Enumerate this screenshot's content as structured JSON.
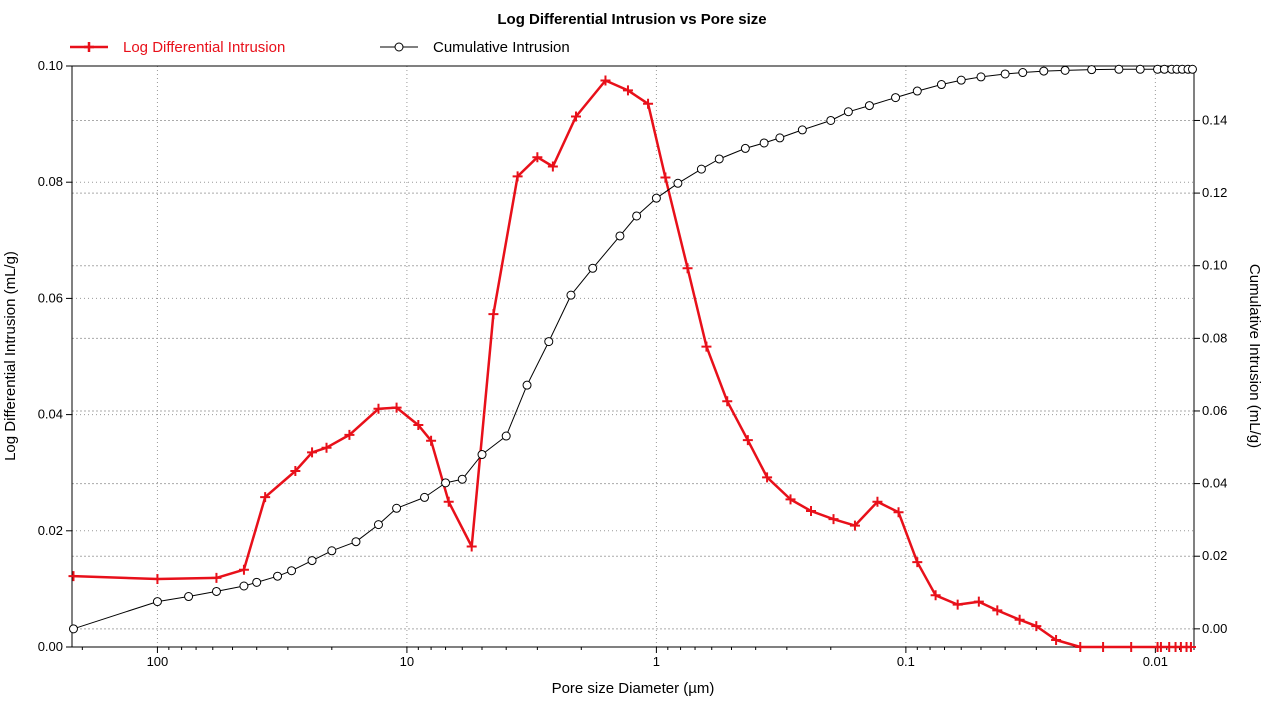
{
  "chart_data": {
    "type": "line",
    "title": "Log Differential Intrusion vs Pore size",
    "xlabel": "Pore size Diameter (µm)",
    "ylabel_left": "Log Differential Intrusion (mL/g)",
    "ylabel_right": "Cumulative Intrusion (mL/g)",
    "x_scale": "log",
    "x_reversed": true,
    "x_ticks": [
      "100",
      "10",
      "1",
      "0.1",
      "0.01"
    ],
    "x_tick_values": [
      100,
      10,
      1,
      0.1,
      0.01
    ],
    "xlim": [
      220,
      0.007
    ],
    "ylim_left": [
      0,
      0.1
    ],
    "y_ticks_left": [
      "0.00",
      "0.02",
      "0.04",
      "0.06",
      "0.08",
      "0.10"
    ],
    "ylim_right": [
      -0.005,
      0.155
    ],
    "y_ticks_right": [
      "0.00",
      "0.02",
      "0.04",
      "0.06",
      "0.08",
      "0.10",
      "0.12",
      "0.14"
    ],
    "grid": true,
    "legend_position": "top-left",
    "series": [
      {
        "name": "Log Differential Intrusion",
        "axis": "left",
        "color": "#e8101a",
        "marker": "plus",
        "x": [
          217,
          100,
          58,
          45,
          37,
          28,
          24,
          21,
          17,
          13,
          11,
          9,
          8,
          6.8,
          5.5,
          4.5,
          3.6,
          3.0,
          2.6,
          2.1,
          1.6,
          1.3,
          1.08,
          0.92,
          0.75,
          0.63,
          0.52,
          0.43,
          0.36,
          0.29,
          0.24,
          0.195,
          0.16,
          0.13,
          0.107,
          0.09,
          0.076,
          0.062,
          0.051,
          0.043,
          0.035,
          0.03,
          0.025,
          0.02,
          0.0162,
          0.0125,
          0.0098,
          0.0095,
          0.0088,
          0.0083,
          0.0079,
          0.0075,
          0.0072
        ],
        "values": [
          0.0122,
          0.0117,
          0.0119,
          0.0133,
          0.0258,
          0.0303,
          0.0335,
          0.0343,
          0.0365,
          0.041,
          0.0412,
          0.0382,
          0.0355,
          0.025,
          0.0173,
          0.0573,
          0.081,
          0.0843,
          0.0827,
          0.0913,
          0.0975,
          0.0958,
          0.0935,
          0.0808,
          0.0652,
          0.0517,
          0.0423,
          0.0356,
          0.0292,
          0.0254,
          0.0234,
          0.022,
          0.0209,
          0.025,
          0.0232,
          0.0146,
          0.0089,
          0.0073,
          0.0078,
          0.0063,
          0.0047,
          0.0036,
          0.0012,
          0.0,
          0.0,
          0.0,
          0.0,
          0.0,
          0.0,
          0.0,
          0.0,
          0.0,
          0.0
        ]
      },
      {
        "name": "Cumulative Intrusion",
        "axis": "right",
        "color": "#000000",
        "marker": "circle",
        "x": [
          217,
          100,
          75,
          58,
          45,
          40,
          33,
          29,
          24,
          20,
          16,
          13,
          11,
          8.5,
          7,
          6,
          5,
          4,
          3.3,
          2.7,
          2.2,
          1.8,
          1.4,
          1.2,
          1.0,
          0.82,
          0.66,
          0.56,
          0.44,
          0.37,
          0.32,
          0.26,
          0.2,
          0.17,
          0.14,
          0.11,
          0.09,
          0.072,
          0.06,
          0.05,
          0.04,
          0.034,
          0.028,
          0.023,
          0.018,
          0.014,
          0.0115,
          0.0098,
          0.0092,
          0.0086,
          0.0082,
          0.0078,
          0.0074,
          0.0071
        ],
        "values": [
          0.0,
          0.0075,
          0.0089,
          0.0103,
          0.0118,
          0.0128,
          0.0145,
          0.016,
          0.0188,
          0.0215,
          0.024,
          0.0287,
          0.0332,
          0.0362,
          0.0402,
          0.0412,
          0.048,
          0.0531,
          0.0671,
          0.0791,
          0.0919,
          0.0993,
          0.1082,
          0.1137,
          0.1186,
          0.1227,
          0.1266,
          0.1294,
          0.1323,
          0.1338,
          0.1352,
          0.1374,
          0.14,
          0.1424,
          0.1441,
          0.1463,
          0.1481,
          0.1499,
          0.1511,
          0.152,
          0.1528,
          0.1532,
          0.1536,
          0.1538,
          0.154,
          0.1541,
          0.1541,
          0.1541,
          0.1541,
          0.1541,
          0.1541,
          0.1541,
          0.1541,
          0.1541
        ]
      }
    ]
  }
}
